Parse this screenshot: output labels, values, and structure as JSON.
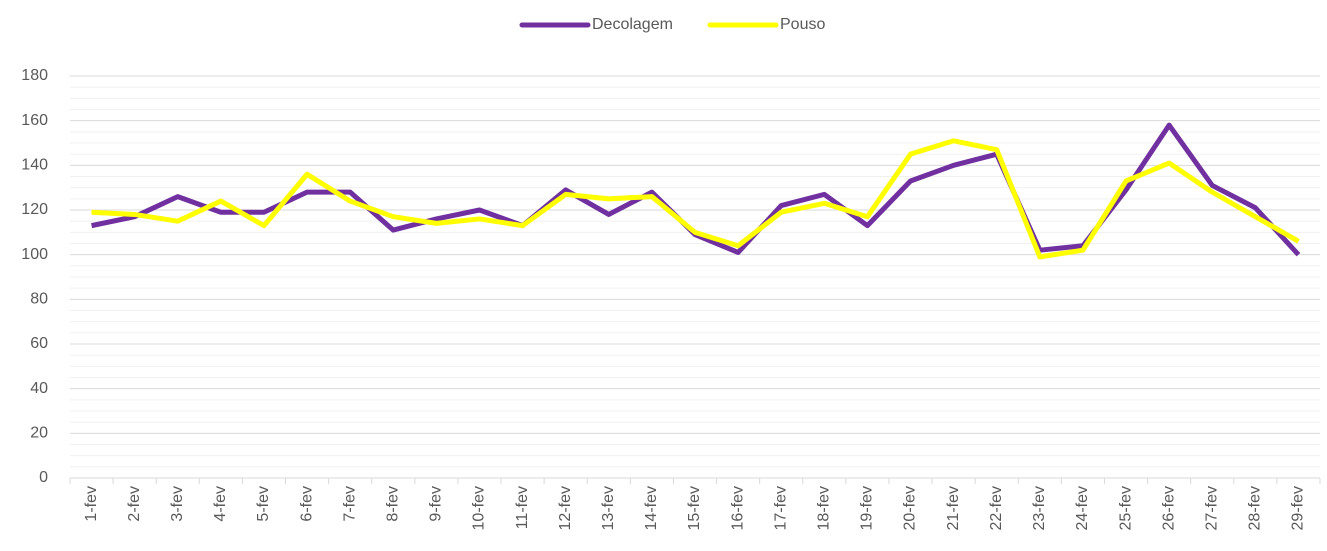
{
  "chart_data": {
    "type": "line",
    "categories": [
      "1-fev",
      "2-fev",
      "3-fev",
      "4-fev",
      "5-fev",
      "6-fev",
      "7-fev",
      "8-fev",
      "9-fev",
      "10-fev",
      "11-fev",
      "12-fev",
      "13-fev",
      "14-fev",
      "15-fev",
      "16-fev",
      "17-fev",
      "18-fev",
      "19-fev",
      "20-fev",
      "21-fev",
      "22-fev",
      "23-fev",
      "24-fev",
      "25-fev",
      "26-fev",
      "27-fev",
      "28-fev",
      "29-fev"
    ],
    "series": [
      {
        "name": "Decolagem",
        "color": "#7030a0",
        "values": [
          113,
          117,
          126,
          119,
          119,
          128,
          128,
          111,
          116,
          120,
          113,
          129,
          118,
          128,
          109,
          101,
          122,
          127,
          113,
          133,
          140,
          145,
          102,
          104,
          129,
          158,
          131,
          121,
          100
        ]
      },
      {
        "name": "Pouso",
        "color": "#ffff00",
        "values": [
          119,
          118,
          115,
          124,
          113,
          136,
          124,
          117,
          114,
          116,
          113,
          127,
          125,
          126,
          110,
          104,
          119,
          123,
          117,
          145,
          151,
          147,
          99,
          102,
          133,
          141,
          128,
          117,
          106
        ]
      }
    ],
    "ylim": [
      0,
      180
    ],
    "yticks": [
      0,
      20,
      40,
      60,
      80,
      100,
      120,
      140,
      160,
      180
    ],
    "grid": true,
    "legend": "top"
  }
}
